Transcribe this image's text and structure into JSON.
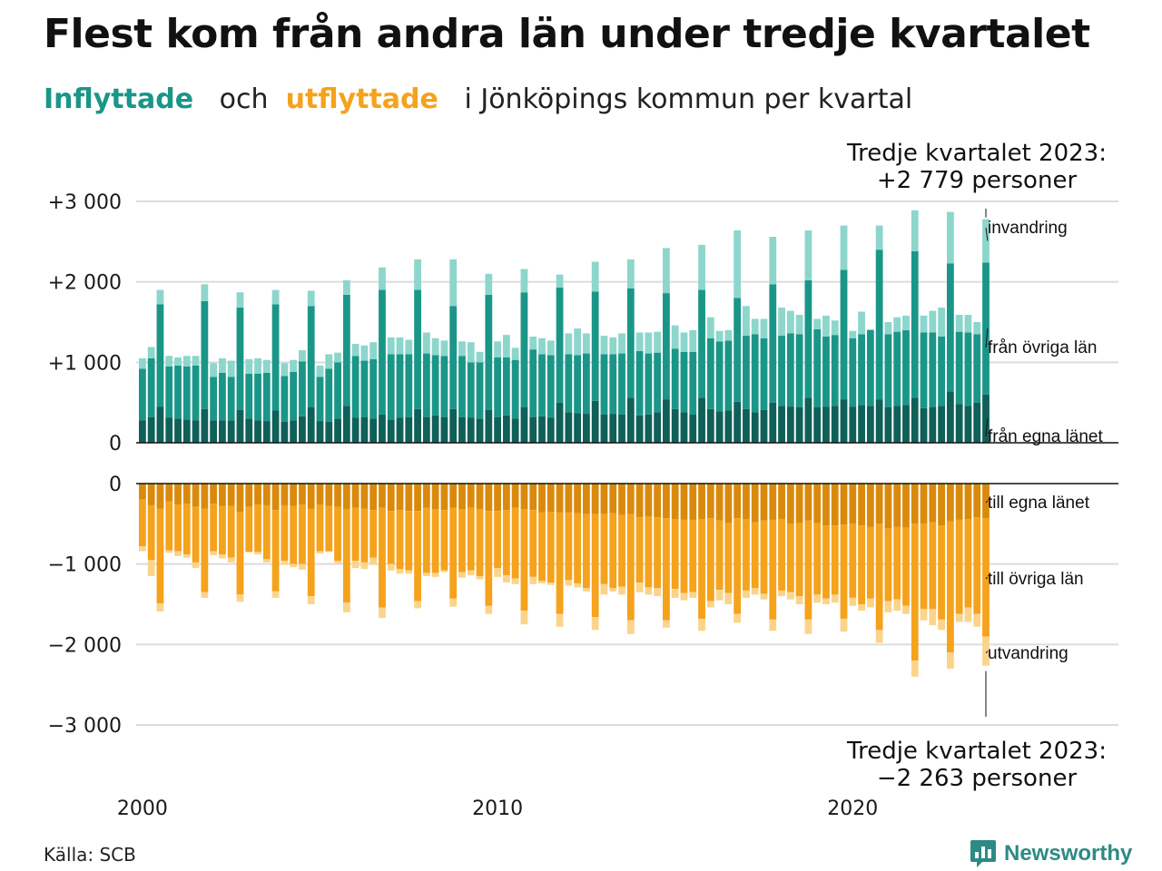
{
  "title": "Flest kom från andra län under tredje kvartalet",
  "subtitle": {
    "part1": "Inflyttade",
    "part2": "och",
    "part3": "utflyttade",
    "part4": "i Jönköpings  kommun  per  kvartal"
  },
  "source": "Källa: SCB",
  "brand": "Newsworthy",
  "colors": {
    "in_own": "#0f6058",
    "in_other": "#1a9688",
    "in_immig": "#8dd6cc",
    "out_own": "#d98a0c",
    "out_other": "#f5a21c",
    "out_emig": "#fbd48c"
  },
  "chart_data": {
    "type": "bar",
    "stacked": true,
    "x_start": "2000 Q1",
    "x_end": "2023 Q3",
    "x_ticks": [
      "2000",
      "2010",
      "2020"
    ],
    "ylim": [
      -3000,
      3000
    ],
    "y_ticks_top": [
      "+3 000",
      "+2 000",
      "+1 000",
      "0"
    ],
    "y_ticks_bottom": [
      "0",
      "−1 000",
      "−2 000",
      "−3 000"
    ],
    "annotation_top": [
      "Tredje kvartalet 2023:",
      "+2 779 personer"
    ],
    "annotation_bottom": [
      "Tredje kvartalet 2023:",
      "−2 263 personer"
    ],
    "series": [
      {
        "name": "från egna länet",
        "group": "in",
        "values": [
          280,
          320,
          450,
          310,
          300,
          290,
          280,
          420,
          280,
          280,
          280,
          410,
          300,
          280,
          270,
          400,
          260,
          280,
          330,
          440,
          270,
          260,
          300,
          460,
          310,
          320,
          300,
          350,
          290,
          310,
          320,
          420,
          320,
          340,
          320,
          420,
          320,
          310,
          300,
          410,
          320,
          340,
          300,
          440,
          320,
          330,
          310,
          500,
          380,
          370,
          360,
          520,
          350,
          360,
          350,
          560,
          340,
          350,
          380,
          540,
          420,
          380,
          350,
          560,
          420,
          390,
          400,
          510,
          420,
          380,
          410,
          500,
          460,
          450,
          440,
          560,
          440,
          450,
          460,
          540,
          450,
          470,
          460,
          540,
          440,
          460,
          470,
          560,
          430,
          440,
          460,
          640,
          480,
          460,
          500,
          600
        ]
      },
      {
        "name": "från övriga län",
        "group": "in",
        "values": [
          920,
          1050,
          1720,
          950,
          960,
          950,
          960,
          1760,
          820,
          870,
          820,
          1680,
          860,
          860,
          870,
          1720,
          830,
          880,
          1010,
          1700,
          820,
          920,
          1000,
          1840,
          1080,
          1020,
          1040,
          1900,
          1100,
          1100,
          1100,
          1900,
          1110,
          1090,
          1080,
          1700,
          1080,
          1000,
          1000,
          1840,
          1060,
          1060,
          1030,
          1870,
          1160,
          1100,
          1090,
          1930,
          1100,
          1090,
          1110,
          1880,
          1100,
          1100,
          1110,
          1920,
          1140,
          1110,
          1120,
          1860,
          1170,
          1130,
          1130,
          1900,
          1300,
          1260,
          1270,
          1800,
          1330,
          1350,
          1300,
          1970,
          1330,
          1360,
          1350,
          2020,
          1410,
          1320,
          1340,
          2150,
          1300,
          1350,
          1400,
          2400,
          1350,
          1380,
          1400,
          2380,
          1370,
          1370,
          1320,
          2230,
          1380,
          1370,
          1350,
          2240
        ]
      },
      {
        "name": "invandring",
        "group": "in",
        "values": [
          1050,
          1190,
          1900,
          1080,
          1060,
          1080,
          1080,
          1970,
          990,
          1050,
          1020,
          1870,
          1040,
          1050,
          1030,
          1900,
          990,
          1030,
          1150,
          1890,
          960,
          1100,
          1120,
          2020,
          1230,
          1210,
          1250,
          2180,
          1310,
          1310,
          1280,
          2280,
          1370,
          1300,
          1270,
          2280,
          1260,
          1250,
          1130,
          2100,
          1260,
          1340,
          1180,
          2160,
          1320,
          1300,
          1270,
          2090,
          1360,
          1420,
          1360,
          2250,
          1330,
          1310,
          1360,
          2280,
          1370,
          1370,
          1380,
          2420,
          1460,
          1370,
          1400,
          2460,
          1560,
          1390,
          1400,
          2640,
          1700,
          1540,
          1540,
          2560,
          1680,
          1640,
          1590,
          2640,
          1540,
          1580,
          1520,
          2700,
          1390,
          1630,
          1410,
          2700,
          1500,
          1560,
          1580,
          2890,
          1580,
          1640,
          1680,
          2870,
          1590,
          1590,
          1500,
          2779
        ]
      },
      {
        "name": "till egna länet",
        "group": "out",
        "values": [
          -200,
          -270,
          -310,
          -220,
          -260,
          -250,
          -290,
          -310,
          -250,
          -280,
          -280,
          -350,
          -290,
          -260,
          -270,
          -330,
          -270,
          -280,
          -260,
          -310,
          -260,
          -280,
          -290,
          -320,
          -300,
          -310,
          -330,
          -300,
          -340,
          -330,
          -340,
          -340,
          -300,
          -320,
          -330,
          -300,
          -320,
          -300,
          -320,
          -340,
          -340,
          -330,
          -300,
          -320,
          -330,
          -360,
          -350,
          -360,
          -360,
          -370,
          -380,
          -380,
          -380,
          -370,
          -390,
          -380,
          -420,
          -410,
          -420,
          -430,
          -440,
          -450,
          -450,
          -440,
          -430,
          -460,
          -490,
          -430,
          -440,
          -480,
          -460,
          -450,
          -440,
          -500,
          -490,
          -460,
          -490,
          -520,
          -520,
          -510,
          -500,
          -520,
          -540,
          -500,
          -560,
          -540,
          -550,
          -500,
          -500,
          -480,
          -520,
          -470,
          -450,
          -440,
          -420,
          -430
        ]
      },
      {
        "name": "till övriga län",
        "group": "out",
        "values": [
          -780,
          -950,
          -1490,
          -830,
          -840,
          -880,
          -980,
          -1350,
          -840,
          -880,
          -920,
          -1380,
          -850,
          -850,
          -940,
          -1340,
          -960,
          -1000,
          -1000,
          -1400,
          -840,
          -840,
          -960,
          -1480,
          -960,
          -980,
          -920,
          -1540,
          -1000,
          -1060,
          -1080,
          -1460,
          -1110,
          -1110,
          -1080,
          -1430,
          -1100,
          -1080,
          -1150,
          -1520,
          -1050,
          -1140,
          -1180,
          -1580,
          -1160,
          -1210,
          -1230,
          -1620,
          -1200,
          -1240,
          -1300,
          -1660,
          -1250,
          -1300,
          -1280,
          -1700,
          -1230,
          -1290,
          -1300,
          -1700,
          -1310,
          -1360,
          -1350,
          -1680,
          -1460,
          -1320,
          -1360,
          -1620,
          -1330,
          -1300,
          -1370,
          -1690,
          -1330,
          -1350,
          -1400,
          -1690,
          -1380,
          -1430,
          -1380,
          -1680,
          -1420,
          -1500,
          -1430,
          -1820,
          -1460,
          -1440,
          -1520,
          -2200,
          -1560,
          -1560,
          -1690,
          -2100,
          -1620,
          -1540,
          -1620,
          -1900
        ]
      },
      {
        "name": "utvandring",
        "group": "out",
        "values": [
          -840,
          -1150,
          -1590,
          -860,
          -900,
          -920,
          -1050,
          -1420,
          -890,
          -930,
          -980,
          -1470,
          -850,
          -880,
          -980,
          -1420,
          -1010,
          -1040,
          -1070,
          -1500,
          -870,
          -850,
          -990,
          -1600,
          -1050,
          -1060,
          -1010,
          -1670,
          -1080,
          -1120,
          -1120,
          -1550,
          -1150,
          -1160,
          -1100,
          -1530,
          -1170,
          -1140,
          -1190,
          -1620,
          -1160,
          -1230,
          -1250,
          -1750,
          -1250,
          -1240,
          -1260,
          -1780,
          -1270,
          -1290,
          -1340,
          -1820,
          -1380,
          -1340,
          -1380,
          -1870,
          -1350,
          -1380,
          -1400,
          -1790,
          -1420,
          -1450,
          -1420,
          -1830,
          -1540,
          -1450,
          -1500,
          -1730,
          -1420,
          -1380,
          -1440,
          -1830,
          -1400,
          -1440,
          -1500,
          -1870,
          -1480,
          -1500,
          -1480,
          -1840,
          -1520,
          -1580,
          -1540,
          -1980,
          -1600,
          -1580,
          -1620,
          -2400,
          -1700,
          -1760,
          -1820,
          -2300,
          -1720,
          -1720,
          -1780,
          -2263
        ]
      }
    ]
  }
}
